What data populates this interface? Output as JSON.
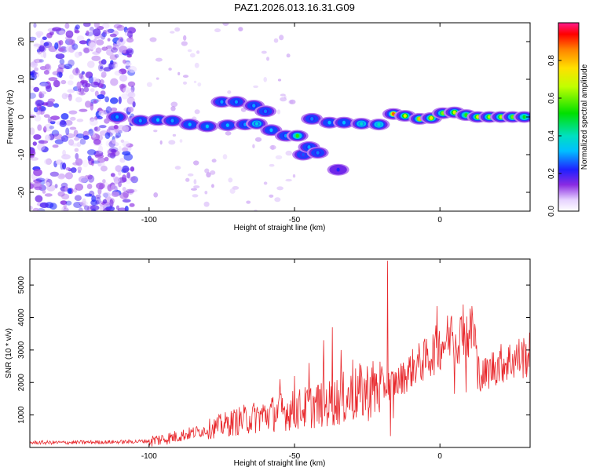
{
  "title": "PAZ1.2026.013.16.31.G09",
  "colors": {
    "snr_line": "#e8282c",
    "axes": "#000000",
    "background": "#ffffff"
  },
  "chart_data": [
    {
      "type": "heatmap",
      "name": "spectrogram",
      "xlabel": "Height of straight line (km)",
      "ylabel": "Frequency (Hz)",
      "xlim": [
        -141,
        31
      ],
      "ylim": [
        -25,
        25
      ],
      "xticks": [
        -100,
        -50,
        0
      ],
      "yticks": [
        -20,
        -10,
        0,
        10,
        20
      ],
      "xtick_labels": [
        "-100",
        "-50",
        "0"
      ],
      "ytick_labels": [
        "-20",
        "-10",
        "0",
        "10",
        "20"
      ],
      "colorbar": {
        "label": "Normalized spectral amplitude",
        "range": [
          0,
          1
        ],
        "ticks": [
          0,
          0.2,
          0.4,
          0.6,
          0.8
        ],
        "tick_labels": [
          "0.0",
          "0.2",
          "0.4",
          "0.6",
          "0.8"
        ]
      },
      "trace": [
        {
          "x": -111,
          "f": 0.0,
          "amp": 0.3
        },
        {
          "x": -103,
          "f": -1.0,
          "amp": 0.3
        },
        {
          "x": -97,
          "f": -0.8,
          "amp": 0.32
        },
        {
          "x": -92,
          "f": -1.0,
          "amp": 0.3
        },
        {
          "x": -86,
          "f": -2.0,
          "amp": 0.32
        },
        {
          "x": -80,
          "f": -2.5,
          "amp": 0.33
        },
        {
          "x": -73,
          "f": -2.2,
          "amp": 0.32
        },
        {
          "x": -67,
          "f": -2.0,
          "amp": 0.3
        },
        {
          "x": -63,
          "f": -1.8,
          "amp": 0.35
        },
        {
          "x": -58,
          "f": -3.5,
          "amp": 0.32
        },
        {
          "x": -53,
          "f": -5.0,
          "amp": 0.3
        },
        {
          "x": -49,
          "f": -5.0,
          "amp": 0.55
        },
        {
          "x": -45,
          "f": -8.0,
          "amp": 0.3
        },
        {
          "x": -42,
          "f": -9.5,
          "amp": 0.28
        },
        {
          "x": -44,
          "f": -0.5,
          "amp": 0.28
        },
        {
          "x": -38,
          "f": -1.5,
          "amp": 0.32
        },
        {
          "x": -33,
          "f": -1.5,
          "amp": 0.32
        },
        {
          "x": -27,
          "f": -1.8,
          "amp": 0.38
        },
        {
          "x": -21,
          "f": -2.0,
          "amp": 0.4
        },
        {
          "x": -16,
          "f": 0.8,
          "amp": 0.88
        },
        {
          "x": -12,
          "f": 0.3,
          "amp": 0.7
        },
        {
          "x": -7,
          "f": -0.5,
          "amp": 0.8
        },
        {
          "x": -3,
          "f": -0.3,
          "amp": 0.75
        },
        {
          "x": 1,
          "f": 1.0,
          "amp": 0.62
        },
        {
          "x": 5,
          "f": 1.2,
          "amp": 0.7
        },
        {
          "x": 9,
          "f": 0.5,
          "amp": 0.55
        },
        {
          "x": 13,
          "f": 0.0,
          "amp": 0.72
        },
        {
          "x": 17,
          "f": 0.0,
          "amp": 0.65
        },
        {
          "x": 21,
          "f": 0.0,
          "amp": 0.65
        },
        {
          "x": 25,
          "f": 0.0,
          "amp": 0.6
        },
        {
          "x": 29,
          "f": 0.0,
          "amp": 0.5
        }
      ],
      "branch": [
        {
          "x": -75,
          "f": 4.0,
          "amp": 0.3
        },
        {
          "x": -70,
          "f": 4.0,
          "amp": 0.3
        },
        {
          "x": -64,
          "f": 3.0,
          "amp": 0.3
        },
        {
          "x": -60,
          "f": 1.5,
          "amp": 0.28
        },
        {
          "x": -47,
          "f": -10.0,
          "amp": 0.25
        },
        {
          "x": -35,
          "f": -14.0,
          "amp": 0.22
        }
      ],
      "noise_region_x": [
        -141,
        -105
      ],
      "noise_amplitude": 0.12
    },
    {
      "type": "line",
      "name": "snr",
      "xlabel": "Height of straight line (km)",
      "ylabel": "SNR (10 * v/v)",
      "xlim": [
        -141,
        31
      ],
      "ylim": [
        0,
        5800
      ],
      "xticks": [
        -100,
        -50,
        0
      ],
      "yticks": [
        1000,
        2000,
        3000,
        4000,
        5000
      ],
      "xtick_labels": [
        "-100",
        "-50",
        "0"
      ],
      "ytick_labels": [
        "1000",
        "2000",
        "3000",
        "4000",
        "5000"
      ],
      "series": [
        {
          "name": "SNR",
          "x": [
            -141,
            -130,
            -120,
            -110,
            -105,
            -100,
            -95,
            -90,
            -85,
            -80,
            -75,
            -70,
            -65,
            -60,
            -55,
            -50,
            -45,
            -40,
            -38,
            -35,
            -30,
            -25,
            -20,
            -18,
            -17,
            -15,
            -12,
            -10,
            -8,
            -5,
            -2,
            0,
            2,
            5,
            8,
            10,
            12,
            13,
            15,
            18,
            20,
            25,
            31
          ],
          "y": [
            150,
            150,
            160,
            170,
            180,
            200,
            260,
            350,
            450,
            550,
            680,
            800,
            900,
            1000,
            1100,
            1150,
            1250,
            1350,
            1350,
            1450,
            1600,
            1750,
            1850,
            1900,
            1950,
            2000,
            2200,
            2400,
            2550,
            2700,
            2950,
            3150,
            3300,
            3400,
            3450,
            3500,
            3500,
            2400,
            2200,
            2450,
            2550,
            2700,
            2850
          ]
        }
      ],
      "spikes": [
        {
          "x": -55,
          "y": 2100
        },
        {
          "x": -50,
          "y": 2200
        },
        {
          "x": -45,
          "y": 2600
        },
        {
          "x": -40,
          "y": 3300
        },
        {
          "x": -37,
          "y": 3700
        },
        {
          "x": -34,
          "y": 3000
        },
        {
          "x": -30,
          "y": 2700
        },
        {
          "x": -20,
          "y": 2500
        },
        {
          "x": -18,
          "y": 5750
        },
        {
          "x": -17,
          "y": 5300
        },
        {
          "x": -16,
          "y": 3600
        },
        {
          "x": -1,
          "y": 4350
        },
        {
          "x": 4,
          "y": 4050
        },
        {
          "x": 8,
          "y": 4400
        },
        {
          "x": 11,
          "y": 4350
        },
        {
          "x": 12,
          "y": 3800
        }
      ],
      "dips": [
        {
          "x": -17,
          "y": 350
        },
        {
          "x": -16,
          "y": 900
        },
        {
          "x": -4,
          "y": 2500
        },
        {
          "x": 5,
          "y": 1650
        },
        {
          "x": 9,
          "y": 1700
        },
        {
          "x": 13,
          "y": 1800
        }
      ]
    }
  ]
}
